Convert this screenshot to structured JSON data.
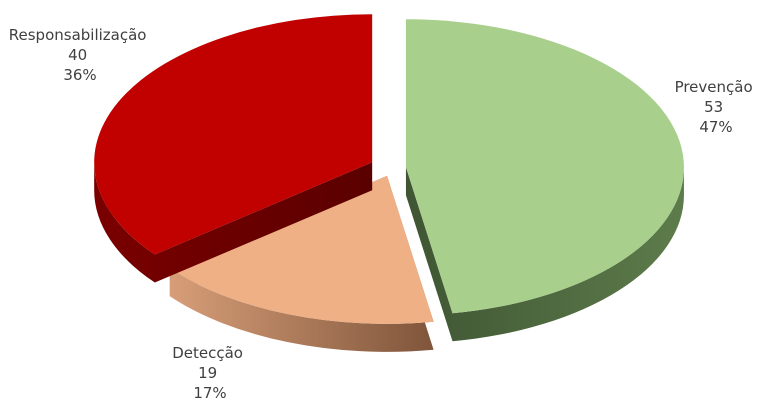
{
  "chart_data": {
    "type": "pie",
    "style": "3d-exploded",
    "legend": "none",
    "slices": [
      {
        "label": "Prevenção",
        "value": 53,
        "percent": "47%",
        "color": "#a9cf8c",
        "side_color": "#4e6a3f"
      },
      {
        "label": "Detecção",
        "value": 19,
        "percent": "17%",
        "color": "#efb086",
        "side_color": "#8a5c40"
      },
      {
        "label": "Responsabilização",
        "value": 40,
        "percent": "36%",
        "color": "#c10000",
        "side_color": "#6e0000"
      }
    ]
  }
}
